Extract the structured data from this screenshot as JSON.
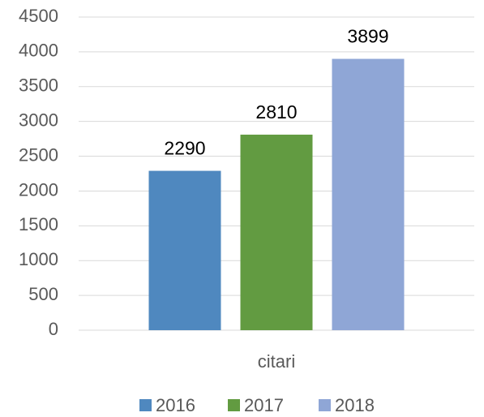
{
  "chart_data": {
    "type": "bar",
    "categories": [
      "citari"
    ],
    "series": [
      {
        "name": "2016",
        "color": "#4f88bf",
        "values": [
          2290
        ]
      },
      {
        "name": "2017",
        "color": "#629b41",
        "values": [
          2810
        ]
      },
      {
        "name": "2018",
        "color": "#8fa6d6",
        "values": [
          3899
        ]
      }
    ],
    "ylim": [
      0,
      4500
    ],
    "yticks": [
      0,
      500,
      1000,
      1500,
      2000,
      2500,
      3000,
      3500,
      4000,
      4500
    ],
    "grid": true,
    "legend": "bottom",
    "data_labels": true
  }
}
